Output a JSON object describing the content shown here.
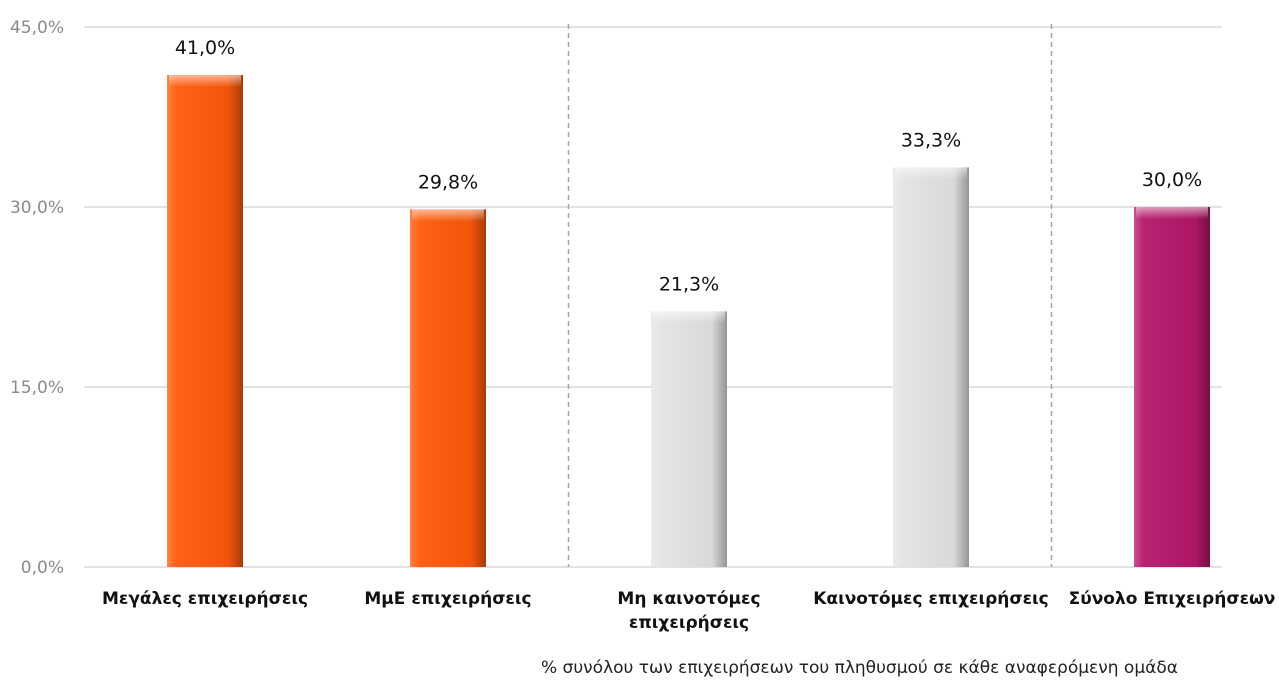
{
  "chart_data": {
    "type": "bar",
    "categories": [
      [
        "Μεγάλες επιχειρήσεις"
      ],
      [
        "ΜμΕ επιχειρήσεις"
      ],
      [
        "Μη καινοτόμες",
        "επιχειρήσεις"
      ],
      [
        "Καινοτόμες επιχειρήσεις"
      ],
      [
        "Σύνολο Επιχειρήσεων"
      ]
    ],
    "values": [
      41.0,
      29.8,
      21.3,
      33.3,
      30.0
    ],
    "value_labels": [
      "41,0%",
      "29,8%",
      "21,3%",
      "33,3%",
      "30,0%"
    ],
    "bar_colors": [
      "#ff5a0a",
      "#ff5a0a",
      "#e2e4e6",
      "#e2e4e6",
      "#b5186a"
    ],
    "ylim": [
      0,
      45
    ],
    "y_ticks": [
      0,
      15,
      30,
      45
    ],
    "y_tick_labels": [
      "0,0%",
      "15,0%",
      "30,0%",
      "45,0%"
    ],
    "grid": true,
    "group_separators_after_index": [
      1,
      3
    ],
    "footnote": "% συνόλου των επιχειρήσεων του πληθυσμού σε κάθε αναφερόμενη ομάδα"
  }
}
